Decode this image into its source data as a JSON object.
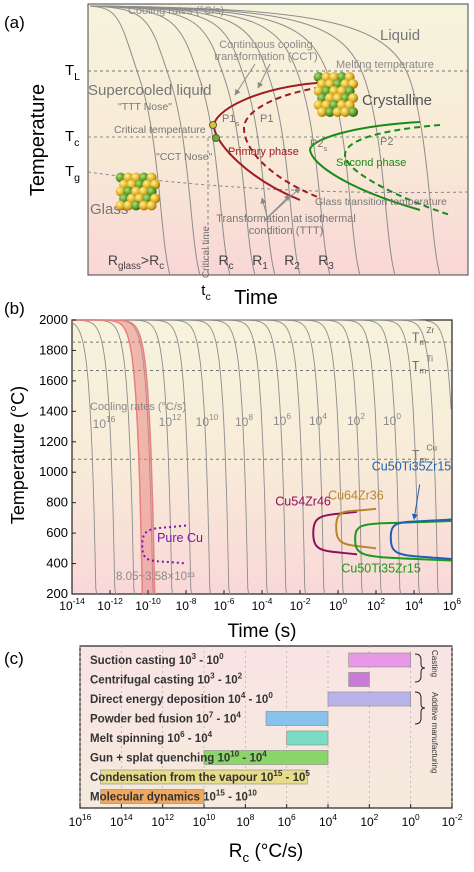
{
  "chart_data": [
    {
      "type": "line",
      "panel_label": "(a)",
      "xlabel": "Time",
      "ylabel": "Temperature",
      "region_labels": [
        "Liquid",
        "Supercooled liquid",
        "Crystalline",
        "Glass"
      ],
      "ytick_labels": [
        {
          "main": "T",
          "sub": "L"
        },
        {
          "main": "T",
          "sub": "c"
        },
        {
          "main": "T",
          "sub": "g"
        }
      ],
      "xtick_label": {
        "main": "t",
        "sub": "c"
      },
      "annotations": {
        "cooling_rates": "Cooling rates (°C/s)",
        "cct": "Continuous cooling transformation (CCT)",
        "cct_line1": "Continuous cooling",
        "cct_line2": "transformation (CCT)",
        "melting": "Melting temperature",
        "ttt_nose": "\"TTT Nose\"",
        "critical_temp": "Critical temperature",
        "cct_nose": "\"CCT Nose\"",
        "primary_phase": "Primary phase",
        "second_phase": "Second phase",
        "glass_transition": "Glass transition temperature",
        "isothermal_line1": "Transformation at isothermal",
        "isothermal_line2": "condition (TTT)",
        "critical_time": "Critical time",
        "p1s": {
          "main": "P1",
          "sub": "s"
        },
        "p1": "P1",
        "p2s": {
          "main": "P2",
          "sub": "s"
        },
        "p2": "P2"
      },
      "rate_labels": [
        {
          "main": "R",
          "sub": "glass",
          "tail": ">R",
          "tail_sub": "c"
        },
        {
          "main": "R",
          "sub": "c"
        },
        {
          "main": "R",
          "sub": "1"
        },
        {
          "main": "R",
          "sub": "2"
        },
        {
          "main": "R",
          "sub": "3"
        }
      ],
      "colors": {
        "primary": "#a01a22",
        "second": "#1a8a1a",
        "cooling": "#8c8c8c",
        "bg_top": "#f6f3dc",
        "bg_bottom": "#f7d6d6"
      }
    },
    {
      "type": "line",
      "panel_label": "(b)",
      "xlabel": "Time (s)",
      "ylabel": "Temperature (°C)",
      "x_scale": "log",
      "xlim": [
        1e-14,
        1000000.0
      ],
      "ylim": [
        200,
        2000
      ],
      "yticks": [
        "2000",
        "1800",
        "1600",
        "1400",
        "1200",
        "1000",
        "800",
        "600",
        "400",
        "200"
      ],
      "xticks": [
        {
          "base": "10",
          "exp": "-14"
        },
        {
          "base": "10",
          "exp": "-12"
        },
        {
          "base": "10",
          "exp": "-10"
        },
        {
          "base": "10",
          "exp": "-8"
        },
        {
          "base": "10",
          "exp": "-6"
        },
        {
          "base": "10",
          "exp": "-4"
        },
        {
          "base": "10",
          "exp": "-2"
        },
        {
          "base": "10",
          "exp": "0"
        },
        {
          "base": "10",
          "exp": "2"
        },
        {
          "base": "10",
          "exp": "4"
        },
        {
          "base": "10",
          "exp": "6"
        }
      ],
      "reference_lines": [
        {
          "label_main": "T",
          "label_sub": "m",
          "label_sup": "Zr",
          "y": 1855
        },
        {
          "label_main": "T",
          "label_sub": "m",
          "label_sup": "Ti",
          "y": 1668
        },
        {
          "label_main": "T",
          "label_sub": "m",
          "label_sup": "Cu",
          "y": 1085
        }
      ],
      "cooling_rate_title": "Cooling rates (°C/s)",
      "cooling_rate_labels": [
        {
          "base": "10",
          "exp": "16"
        },
        {
          "base": "10",
          "exp": "12"
        },
        {
          "base": "10",
          "exp": "10"
        },
        {
          "base": "10",
          "exp": "8"
        },
        {
          "base": "10",
          "exp": "6"
        },
        {
          "base": "10",
          "exp": "4"
        },
        {
          "base": "10",
          "exp": "2"
        },
        {
          "base": "10",
          "exp": "0"
        }
      ],
      "cooling_rate_values": [
        1e+16,
        1000000000000000.0,
        100000000000000.0,
        10000000000000.0,
        1000000000000.0,
        100000000000.0,
        10000000000.0,
        1000000000.0,
        100000000.0,
        10000000.0,
        1000000.0,
        100000.0,
        10000.0,
        1000.0,
        100.0,
        10.0,
        1.0,
        0.1,
        0.01,
        0.001
      ],
      "band": {
        "label": "8.05~3.58×10¹³",
        "rate_min": 8050000000000.0,
        "rate_max": 35800000000000.0,
        "color": "#e88080"
      },
      "series": [
        {
          "name": "Pure Cu",
          "color": "#7b16a8",
          "style": "dotted",
          "nose_t": 5e-11,
          "nose_T": 520,
          "top_T": 650,
          "bottom_T": 400,
          "tail_t": 1e-08
        },
        {
          "name": "Cu54Zr46",
          "color": "#8c1058",
          "style": "solid",
          "nose_t": 0.05,
          "nose_T": 600,
          "top_T": 740,
          "bottom_T": 460,
          "tail_t": 10
        },
        {
          "name": "Cu64Zr36",
          "color": "#b8862a",
          "style": "solid",
          "nose_t": 0.8,
          "nose_T": 640,
          "top_T": 760,
          "bottom_T": 500,
          "tail_t": 100
        },
        {
          "name": "Cu50Ti35Zr15",
          "color": "#1a9a1a",
          "style": "solid",
          "nose_t": 8,
          "nose_T": 560,
          "top_T": 680,
          "bottom_T": 420,
          "tail_t": 1000000.0
        },
        {
          "name": "Cu50Ti35Zr15",
          "color": "#2060b0",
          "style": "solid",
          "nose_t": 600,
          "nose_T": 570,
          "top_T": 690,
          "bottom_T": 430,
          "tail_t": 1000000.0
        }
      ]
    },
    {
      "type": "bar",
      "orientation": "horizontal",
      "panel_label": "(c)",
      "xlabel": "R",
      "xlabel_sub": "c",
      "xlabel_unit": " (°C/s)",
      "x_scale": "log",
      "xlim_exponent": [
        16,
        -2
      ],
      "xticks": [
        {
          "base": "10",
          "exp": "16"
        },
        {
          "base": "10",
          "exp": "14"
        },
        {
          "base": "10",
          "exp": "12"
        },
        {
          "base": "10",
          "exp": "10"
        },
        {
          "base": "10",
          "exp": "8"
        },
        {
          "base": "10",
          "exp": "6"
        },
        {
          "base": "10",
          "exp": "4"
        },
        {
          "base": "10",
          "exp": "2"
        },
        {
          "base": "10",
          "exp": "0"
        },
        {
          "base": "10",
          "exp": "-2"
        }
      ],
      "group_labels": [
        "Casting",
        "Additive manufacturing"
      ],
      "bars": [
        {
          "name": "Suction casting",
          "hi": "3",
          "lo": "0",
          "from_exp": 3,
          "to_exp": 0,
          "color": "#e69ae6"
        },
        {
          "name": "Centrifugal casting",
          "hi": "3",
          "lo": "2",
          "from_exp": 3,
          "to_exp": 2,
          "color": "#cc7ad8"
        },
        {
          "name": "Direct energy deposition",
          "hi": "4",
          "lo": "0",
          "from_exp": 4,
          "to_exp": 0,
          "color": "#b8b4ea"
        },
        {
          "name": "Powder bed fusion",
          "hi": "7",
          "lo": "4",
          "from_exp": 7,
          "to_exp": 4,
          "color": "#88c2ec"
        },
        {
          "name": "Melt spinning",
          "hi": "6",
          "lo": "4",
          "from_exp": 6,
          "to_exp": 4,
          "color": "#7adcc4"
        },
        {
          "name": "Gun + splat quenching",
          "hi": "10",
          "lo": "4",
          "from_exp": 10,
          "to_exp": 4,
          "color": "#8ad66a"
        },
        {
          "name": "Condensation from the vapour",
          "hi": "15",
          "lo": "5",
          "from_exp": 15,
          "to_exp": 5,
          "color": "#e6dc8a"
        },
        {
          "name": "Molecular dynamics",
          "hi": "15",
          "lo": "10",
          "from_exp": 15,
          "to_exp": 10,
          "color": "#f0a860"
        }
      ]
    }
  ]
}
